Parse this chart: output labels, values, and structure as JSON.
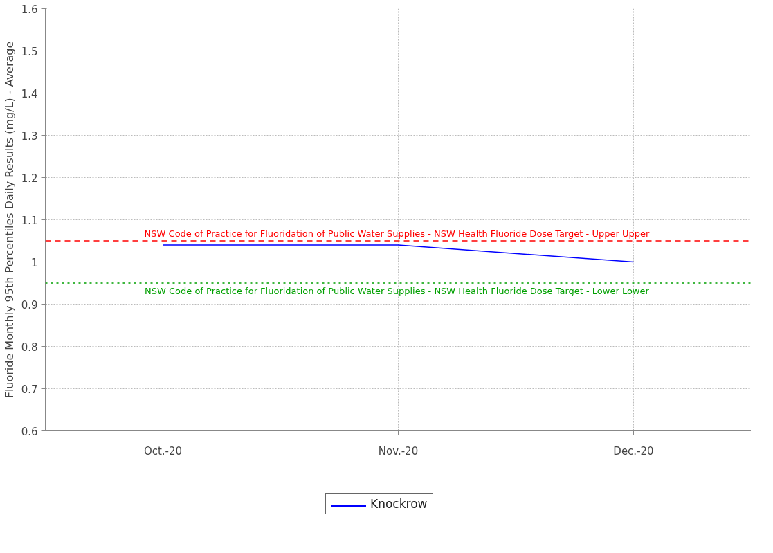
{
  "chart_data": {
    "type": "line",
    "ylabel": "Fluoride Monthly 95th Percentiles Daily Results (mg/L) - Average",
    "categories": [
      "Oct.-20",
      "Nov.-20",
      "Dec.-20"
    ],
    "series": [
      {
        "name": "Knockrow",
        "color": "#0000ff",
        "values": [
          1.04,
          1.04,
          1.0
        ]
      }
    ],
    "ylim": [
      0.6,
      1.6
    ],
    "yticks": [
      0.6,
      0.7,
      0.8,
      0.9,
      1,
      1.1,
      1.2,
      1.3,
      1.4,
      1.5,
      1.6
    ],
    "ref_lines": [
      {
        "axis": "y",
        "value": 1.05,
        "label": "NSW Code of Practice for  Fluoridation of Public Water Supplies - NSW Health Fluoride Dose Target - Upper Upper",
        "color": "#ff0000",
        "line_style": "dashed"
      },
      {
        "axis": "y",
        "value": 0.95,
        "label": "NSW Code of Practice for  Fluoridation of Public Water Supplies - NSW Health Fluoride Dose Target - Lower Lower",
        "color": "#00a000",
        "line_style": "dotted"
      }
    ],
    "grid": true,
    "legend": "bottom",
    "marker": "none",
    "line_style": "solid"
  }
}
